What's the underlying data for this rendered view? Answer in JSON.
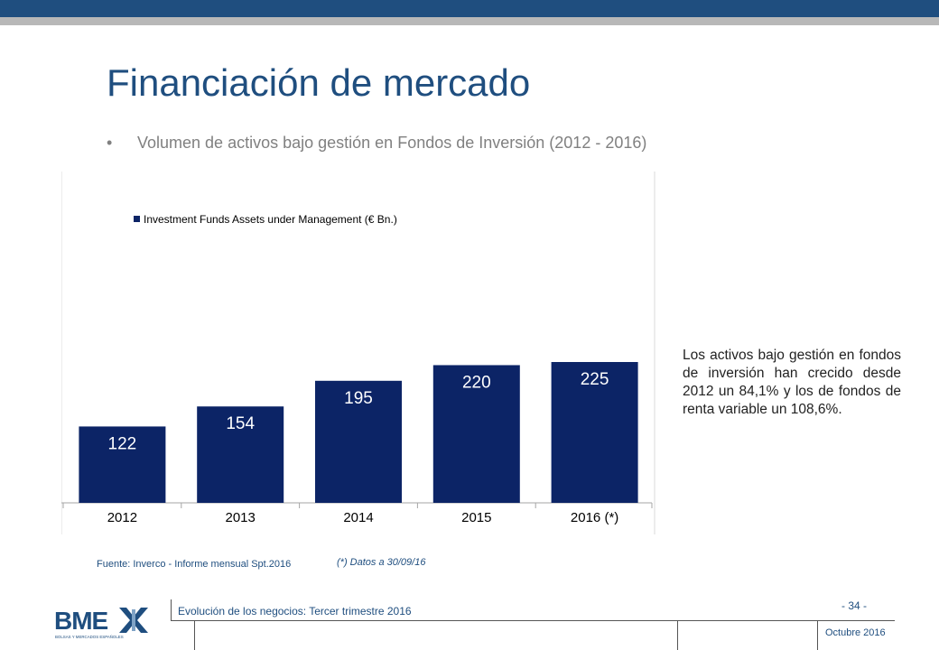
{
  "slide": {
    "title": "Financiación de mercado",
    "bullet": "•",
    "subtitle": "Volumen de activos bajo gestión en Fondos de Inversión (2012 - 2016)",
    "side_text": "Los activos bajo gestión en fondos de inversión han crecido desde 2012 un 84,1% y los de fondos de renta variable un 108,6%.",
    "source": "Fuente: Inverco - Informe mensual Spt.2016",
    "note": "(*) Datos a 30/09/16"
  },
  "footer": {
    "section": "Evolución de los negocios: Tercer trimestre 2016",
    "page": "- 34 -",
    "date": "Octubre 2016",
    "logo_text": "BME",
    "logo_tagline": "BOLSAS Y MERCADOS ESPAÑOLES"
  },
  "colors": {
    "brand_blue": "#1f4e7f",
    "bar_navy": "#0c2466",
    "top_gray": "#b8b8b8",
    "logo_accent": "#7fa3c6"
  },
  "chart_data": {
    "type": "bar",
    "categories": [
      "2012",
      "2013",
      "2014",
      "2015",
      "2016 (*)"
    ],
    "series": [
      {
        "name": "Investment Funds Assets under Management (€ Bn.)",
        "values": [
          122,
          154,
          195,
          220,
          225
        ]
      }
    ],
    "data_labels": [
      "122",
      "154",
      "195",
      "220",
      "225"
    ],
    "ylim": [
      0,
      250
    ],
    "legend": "top-left",
    "grid": false,
    "xlabel": "",
    "ylabel": ""
  }
}
